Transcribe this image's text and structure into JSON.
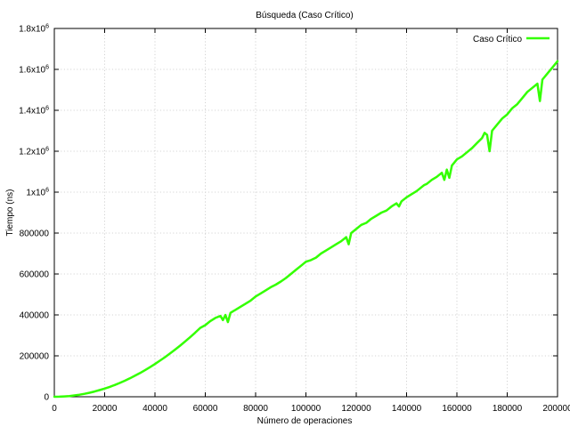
{
  "chart_data": {
    "type": "line",
    "title": "Búsqueda (Caso Crítico)",
    "xlabel": "Número de operaciones",
    "ylabel": "Tiempo (ns)",
    "xlim": [
      0,
      200000
    ],
    "ylim": [
      0,
      1800000
    ],
    "x_ticks": [
      0,
      20000,
      40000,
      60000,
      80000,
      100000,
      120000,
      140000,
      160000,
      180000,
      200000
    ],
    "x_tick_labels": [
      "0",
      "20000",
      "40000",
      "60000",
      "80000",
      "100000",
      "120000",
      "140000",
      "160000",
      "180000",
      "200000"
    ],
    "y_ticks": [
      {
        "value": 0,
        "mantissa": "0",
        "exp": ""
      },
      {
        "value": 200000,
        "mantissa": "200000",
        "exp": ""
      },
      {
        "value": 400000,
        "mantissa": "400000",
        "exp": ""
      },
      {
        "value": 600000,
        "mantissa": "600000",
        "exp": ""
      },
      {
        "value": 800000,
        "mantissa": "800000",
        "exp": ""
      },
      {
        "value": 1000000,
        "mantissa": "1x10",
        "exp": "6"
      },
      {
        "value": 1200000,
        "mantissa": "1.2x10",
        "exp": "6"
      },
      {
        "value": 1400000,
        "mantissa": "1.4x10",
        "exp": "6"
      },
      {
        "value": 1600000,
        "mantissa": "1.6x10",
        "exp": "6"
      },
      {
        "value": 1800000,
        "mantissa": "1.8x10",
        "exp": "6"
      }
    ],
    "grid": true,
    "legend_position": "top-right",
    "series": [
      {
        "name": "Caso Crítico",
        "color": "#33ff00",
        "x": [
          0,
          2000,
          4000,
          6000,
          8000,
          10000,
          12000,
          14000,
          16000,
          18000,
          20000,
          22000,
          24000,
          26000,
          28000,
          30000,
          32000,
          34000,
          36000,
          38000,
          40000,
          42000,
          44000,
          46000,
          48000,
          50000,
          52000,
          54000,
          56000,
          58000,
          60000,
          62000,
          64000,
          66000,
          67000,
          68000,
          69000,
          70000,
          71000,
          72000,
          74000,
          76000,
          78000,
          80000,
          82000,
          84000,
          86000,
          88000,
          90000,
          92000,
          94000,
          96000,
          98000,
          100000,
          102000,
          104000,
          106000,
          108000,
          110000,
          112000,
          114000,
          116000,
          117000,
          118000,
          120000,
          122000,
          124000,
          126000,
          128000,
          130000,
          132000,
          134000,
          136000,
          137000,
          138000,
          140000,
          142000,
          144000,
          146000,
          147000,
          148000,
          150000,
          152000,
          154000,
          155000,
          156000,
          157000,
          158000,
          160000,
          162000,
          164000,
          166000,
          168000,
          170000,
          171000,
          172000,
          173000,
          174000,
          176000,
          178000,
          180000,
          182000,
          184000,
          186000,
          188000,
          190000,
          192000,
          193000,
          194000,
          196000,
          198000,
          200000
        ],
        "values": [
          0,
          400,
          1600,
          3600,
          6400,
          10000,
          14500,
          19600,
          25600,
          32400,
          40000,
          48400,
          57600,
          67600,
          78400,
          90000,
          102400,
          115600,
          129600,
          144400,
          160000,
          176400,
          193600,
          211600,
          230400,
          250000,
          270400,
          291600,
          313600,
          336400,
          350000,
          370000,
          385000,
          395000,
          375000,
          400000,
          365000,
          410000,
          418000,
          425000,
          440000,
          455000,
          470000,
          490000,
          505000,
          520000,
          535000,
          548000,
          563000,
          580000,
          600000,
          620000,
          640000,
          660000,
          668000,
          680000,
          700000,
          715000,
          730000,
          745000,
          760000,
          780000,
          745000,
          800000,
          820000,
          840000,
          850000,
          870000,
          885000,
          900000,
          910000,
          930000,
          945000,
          930000,
          955000,
          975000,
          990000,
          1005000,
          1025000,
          1035000,
          1040000,
          1060000,
          1075000,
          1095000,
          1060000,
          1110000,
          1070000,
          1130000,
          1160000,
          1175000,
          1195000,
          1215000,
          1240000,
          1265000,
          1290000,
          1280000,
          1200000,
          1300000,
          1330000,
          1360000,
          1380000,
          1410000,
          1430000,
          1460000,
          1490000,
          1510000,
          1530000,
          1445000,
          1550000,
          1580000,
          1610000,
          1640000
        ]
      }
    ]
  }
}
